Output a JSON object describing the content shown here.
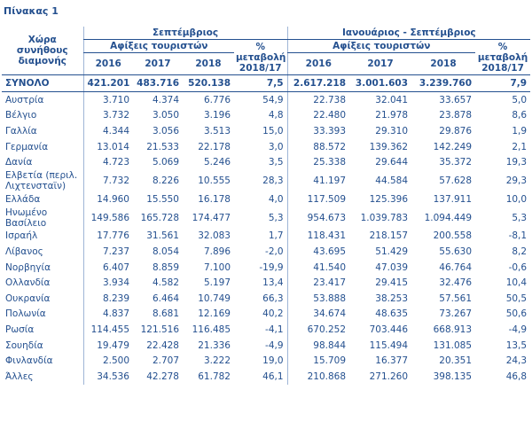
{
  "title": "Πίνακας 1",
  "header": {
    "country": "Χώρα συνήθους διαμονής",
    "period1": "Σεπτέμβριος",
    "period2": "Ιανουάριος - Σεπτέμβριος",
    "arrivals1": "Αφίξεις τουριστών",
    "arrivals2": "Αφίξεις τουριστών",
    "change1": "% μεταβολή 2018/17",
    "change2": "% μεταβολή 2018/17",
    "years1": [
      "2016",
      "2017",
      "2018"
    ],
    "years2": [
      "2016",
      "2017",
      "2018"
    ]
  },
  "table": {
    "rows": [
      [
        "ΣΥΝΟΛΟ",
        "421.201",
        "483.716",
        "520.138",
        "7,5",
        "2.617.218",
        "3.001.603",
        "3.239.760",
        "7,9"
      ],
      [
        "Αυστρία",
        "3.710",
        "4.374",
        "6.776",
        "54,9",
        "22.738",
        "32.041",
        "33.657",
        "5,0"
      ],
      [
        "Βέλγιο",
        "3.732",
        "3.050",
        "3.196",
        "4,8",
        "22.480",
        "21.978",
        "23.878",
        "8,6"
      ],
      [
        "Γαλλία",
        "4.344",
        "3.056",
        "3.513",
        "15,0",
        "33.393",
        "29.310",
        "29.876",
        "1,9"
      ],
      [
        "Γερμανία",
        "13.014",
        "21.533",
        "22.178",
        "3,0",
        "88.572",
        "139.362",
        "142.249",
        "2,1"
      ],
      [
        "Δανία",
        "4.723",
        "5.069",
        "5.246",
        "3,5",
        "25.338",
        "29.644",
        "35.372",
        "19,3"
      ],
      [
        "Ελβετία (περιλ. Λιχτενσταϊν)",
        "7.732",
        "8.226",
        "10.555",
        "28,3",
        "41.197",
        "44.584",
        "57.628",
        "29,3"
      ],
      [
        "Ελλάδα",
        "14.960",
        "15.550",
        "16.178",
        "4,0",
        "117.509",
        "125.396",
        "137.911",
        "10,0"
      ],
      [
        "Ηνωμένο Βασίλειο",
        "149.586",
        "165.728",
        "174.477",
        "5,3",
        "954.673",
        "1.039.783",
        "1.094.449",
        "5,3"
      ],
      [
        "Ισραήλ",
        "17.776",
        "31.561",
        "32.083",
        "1,7",
        "118.431",
        "218.157",
        "200.558",
        "-8,1"
      ],
      [
        "Λίβανος",
        "7.237",
        "8.054",
        "7.896",
        "-2,0",
        "43.695",
        "51.429",
        "55.630",
        "8,2"
      ],
      [
        "Νορβηγία",
        "6.407",
        "8.859",
        "7.100",
        "-19,9",
        "41.540",
        "47.039",
        "46.764",
        "-0,6"
      ],
      [
        "Ολλανδία",
        "3.934",
        "4.582",
        "5.197",
        "13,4",
        "23.417",
        "29.415",
        "32.476",
        "10,4"
      ],
      [
        "Ουκρανία",
        "8.239",
        "6.464",
        "10.749",
        "66,3",
        "53.888",
        "38.253",
        "57.561",
        "50,5"
      ],
      [
        "Πολωνία",
        "4.837",
        "8.681",
        "12.169",
        "40,2",
        "34.674",
        "48.635",
        "73.267",
        "50,6"
      ],
      [
        "Ρωσία",
        "114.455",
        "121.516",
        "116.485",
        "-4,1",
        "670.252",
        "703.446",
        "668.913",
        "-4,9"
      ],
      [
        "Σουηδία",
        "19.479",
        "22.428",
        "21.336",
        "-4,9",
        "98.844",
        "115.494",
        "131.085",
        "13,5"
      ],
      [
        "Φινλανδία",
        "2.500",
        "2.707",
        "3.222",
        "19,0",
        "15.709",
        "16.377",
        "20.351",
        "24,3"
      ],
      [
        "Άλλες",
        "34.536",
        "42.278",
        "61.782",
        "46,1",
        "210.868",
        "271.260",
        "398.135",
        "46,8"
      ]
    ]
  }
}
